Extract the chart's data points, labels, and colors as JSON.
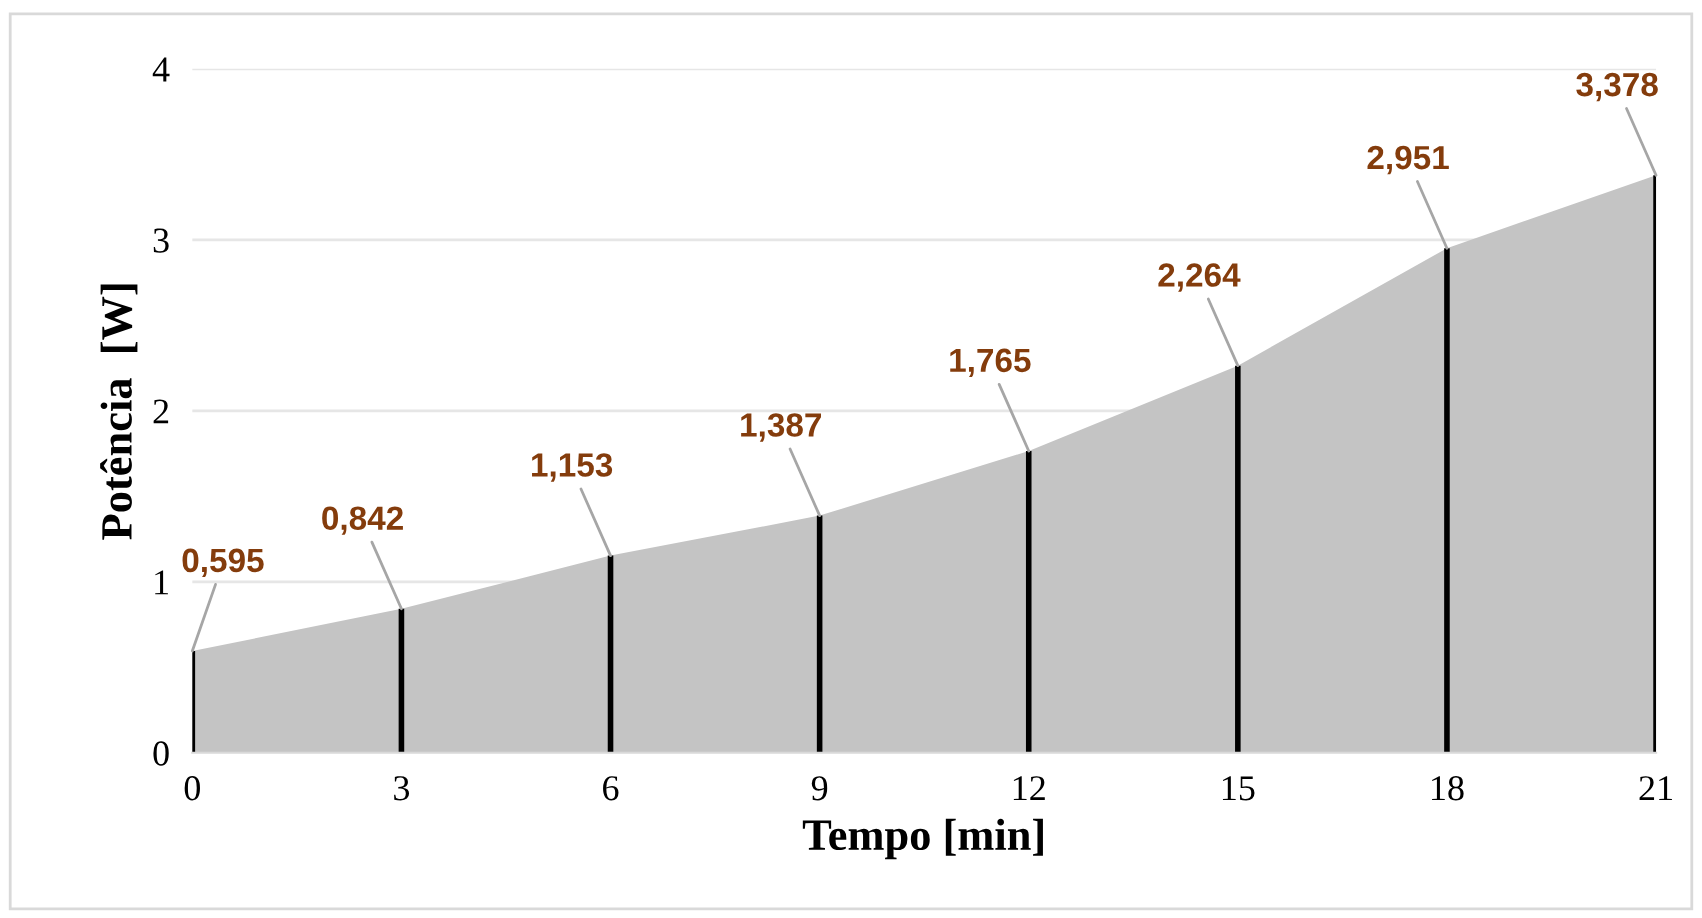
{
  "chart_data": {
    "type": "area",
    "xlabel": "Tempo [min]",
    "ylabel": "Potência  [W]",
    "x": [
      0,
      3,
      6,
      9,
      12,
      15,
      18,
      21
    ],
    "series": [
      {
        "color": "#c4c4c4",
        "values": [
          0.595,
          0.842,
          1.153,
          1.387,
          1.765,
          2.264,
          2.951,
          3.378
        ],
        "value_labels": [
          "0,595",
          "0,842",
          "1,153",
          "1,387",
          "1,765",
          "2,264",
          "2,951",
          "3,378"
        ]
      },
      {
        "type": "bar",
        "color": "#000000",
        "values": [
          0.595,
          0.842,
          1.153,
          1.387,
          1.765,
          2.264,
          2.951,
          3.378
        ]
      }
    ],
    "xlim": [
      0,
      21
    ],
    "xticks": [
      0,
      3,
      6,
      9,
      12,
      15,
      18,
      21
    ],
    "ylim": [
      0,
      4
    ],
    "yticks": [
      0,
      1,
      2,
      3,
      4
    ],
    "grid": "y",
    "legend": false
  }
}
